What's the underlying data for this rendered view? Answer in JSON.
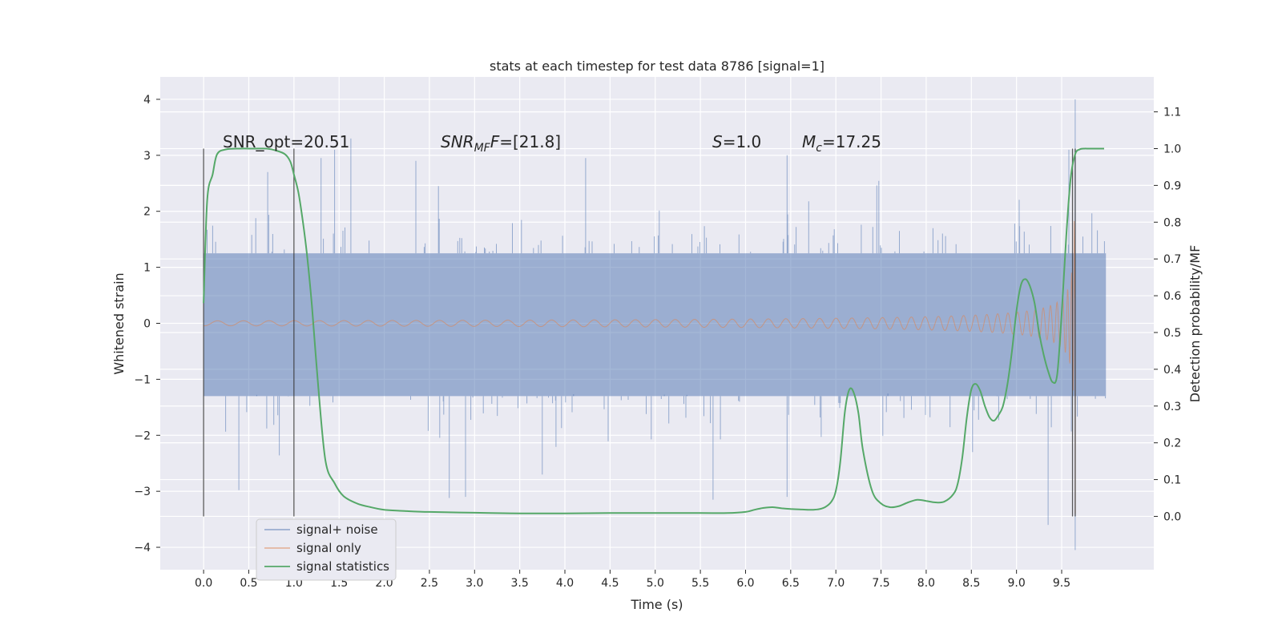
{
  "chart_data": {
    "type": "line",
    "title": "stats at each timestep for test data 8786 [signal=1]",
    "xlabel": "Time (s)",
    "ylabel": "Whitened strain",
    "y2label": "Detection probability/MF",
    "xlim": [
      -0.48,
      10.52
    ],
    "ylim": [
      -4.4,
      4.4
    ],
    "y2lim": [
      -0.145,
      1.195
    ],
    "x_ticks": [
      0.0,
      0.5,
      1.0,
      1.5,
      2.0,
      2.5,
      3.0,
      3.5,
      4.0,
      4.5,
      5.0,
      5.5,
      6.0,
      6.5,
      7.0,
      7.5,
      8.0,
      8.5,
      9.0,
      9.5
    ],
    "x_tick_labels": [
      "0.0",
      "0.5",
      "1.0",
      "1.5",
      "2.0",
      "2.5",
      "3.0",
      "3.5",
      "4.0",
      "4.5",
      "5.0",
      "5.5",
      "6.0",
      "6.5",
      "7.0",
      "7.5",
      "8.0",
      "8.5",
      "9.0",
      "9.5"
    ],
    "y_ticks": [
      4,
      3,
      2,
      1,
      0,
      -1,
      -2,
      -3,
      -4
    ],
    "y_tick_labels": [
      "4",
      "3",
      "2",
      "1",
      "0",
      "−1",
      "−2",
      "−3",
      "−4"
    ],
    "y2_ticks": [
      1.1,
      1.0,
      0.9,
      0.8,
      0.7,
      0.6,
      0.5,
      0.4,
      0.3,
      0.2,
      0.1,
      0.0
    ],
    "y2_tick_labels": [
      "1.1",
      "1.0",
      "0.9",
      "0.8",
      "0.7",
      "0.6",
      "0.5",
      "0.4",
      "0.3",
      "0.2",
      "0.1",
      "0.0"
    ],
    "grid": true,
    "legend_position": "bottom-left",
    "annotations": {
      "snr_opt": "SNR_opt=20.51",
      "snr_mf_base": "SNR",
      "snr_mf_sub": "MF",
      "snr_mf_value": "=[21.8]",
      "s_label": "S",
      "s_value": "=1.0",
      "mc_base": "M",
      "mc_sub": "c",
      "mc_value": "=17.25"
    },
    "vertical_markers": [
      0.0,
      1.0,
      9.62,
      9.65
    ],
    "series": [
      {
        "name": "signal+ noise",
        "color": "#4c72b0",
        "description_values": {
          "x_range": [
            0.0,
            9.99
          ],
          "envelope_core": [
            -1.3,
            1.25
          ],
          "spikes": [
            [
              0.39,
              -2.98
            ],
            [
              0.71,
              2.7
            ],
            [
              1.3,
              2.95
            ],
            [
              1.45,
              3.1
            ],
            [
              1.63,
              3.3
            ],
            [
              2.35,
              2.9
            ],
            [
              2.6,
              2.45
            ],
            [
              2.72,
              -3.12
            ],
            [
              2.9,
              -3.1
            ],
            [
              3.75,
              -2.7
            ],
            [
              4.23,
              2.95
            ],
            [
              5.64,
              -3.15
            ],
            [
              6.46,
              3.0
            ],
            [
              6.46,
              -3.1
            ],
            [
              9.35,
              -3.6
            ],
            [
              9.58,
              3.1
            ],
            [
              9.65,
              4.0
            ],
            [
              9.65,
              -4.05
            ]
          ]
        }
      },
      {
        "name": "signal only",
        "color": "#dd8452",
        "chirp": {
          "t_coalescence": 9.65,
          "a_end": 2.6,
          "f_end": 55
        }
      },
      {
        "name": "signal statistics",
        "color": "#55a868",
        "x": [
          0.0,
          0.04,
          0.1,
          0.15,
          0.25,
          0.4,
          0.55,
          0.7,
          0.8,
          0.9,
          0.96,
          1.0,
          1.05,
          1.1,
          1.15,
          1.2,
          1.27,
          1.35,
          1.45,
          1.55,
          1.7,
          1.85,
          2.0,
          2.2,
          2.5,
          3.0,
          3.5,
          4.0,
          4.5,
          5.0,
          5.5,
          5.8,
          6.0,
          6.1,
          6.2,
          6.3,
          6.4,
          6.5,
          6.6,
          6.7,
          6.8,
          6.88,
          6.95,
          7.0,
          7.05,
          7.1,
          7.15,
          7.2,
          7.25,
          7.3,
          7.4,
          7.5,
          7.6,
          7.7,
          7.8,
          7.9,
          8.0,
          8.1,
          8.2,
          8.3,
          8.35,
          8.4,
          8.45,
          8.5,
          8.55,
          8.6,
          8.65,
          8.7,
          8.75,
          8.8,
          8.85,
          8.9,
          8.95,
          9.0,
          9.05,
          9.1,
          9.15,
          9.2,
          9.25,
          9.3,
          9.35,
          9.4,
          9.45,
          9.5,
          9.55,
          9.6,
          9.65,
          9.7,
          9.75,
          9.8,
          9.9,
          9.97
        ],
        "y": [
          0.58,
          0.86,
          0.93,
          0.985,
          0.998,
          1.0,
          1.0,
          1.0,
          0.995,
          0.985,
          0.965,
          0.93,
          0.88,
          0.8,
          0.7,
          0.57,
          0.35,
          0.15,
          0.09,
          0.055,
          0.035,
          0.025,
          0.018,
          0.015,
          0.012,
          0.01,
          0.008,
          0.008,
          0.009,
          0.009,
          0.009,
          0.009,
          0.012,
          0.018,
          0.023,
          0.025,
          0.022,
          0.02,
          0.019,
          0.018,
          0.019,
          0.025,
          0.04,
          0.07,
          0.15,
          0.285,
          0.345,
          0.335,
          0.28,
          0.18,
          0.07,
          0.035,
          0.025,
          0.028,
          0.038,
          0.045,
          0.042,
          0.038,
          0.04,
          0.06,
          0.09,
          0.16,
          0.27,
          0.345,
          0.36,
          0.34,
          0.3,
          0.27,
          0.26,
          0.275,
          0.3,
          0.36,
          0.45,
          0.56,
          0.63,
          0.645,
          0.625,
          0.58,
          0.5,
          0.44,
          0.395,
          0.365,
          0.385,
          0.55,
          0.76,
          0.92,
          0.985,
          0.998,
          1.0,
          1.0,
          1.0,
          1.0
        ]
      }
    ]
  }
}
